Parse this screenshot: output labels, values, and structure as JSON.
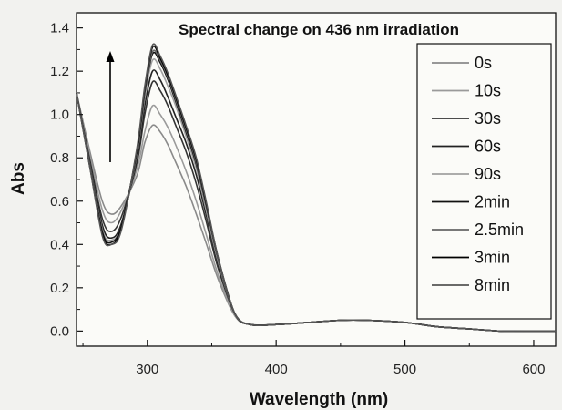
{
  "chart_data": {
    "type": "line",
    "title": "Spectral change on 436 nm irradiation",
    "xlabel": "Wavelength (nm)",
    "ylabel": "Abs",
    "xlim": [
      245,
      617
    ],
    "ylim": [
      -0.07,
      1.47
    ],
    "xticks": [
      300,
      400,
      500,
      600
    ],
    "yticks": [
      0.0,
      0.2,
      0.4,
      0.6,
      0.8,
      1.0,
      1.2,
      1.4
    ],
    "grid": false,
    "legend_position": "right",
    "annotation": "upward arrow near 275 nm indicating increasing absorbance with irradiation time",
    "series": [
      {
        "name": "0s",
        "color": "#8a8a8a",
        "values": [
          1.1,
          0.84,
          0.6,
          0.54,
          0.58,
          0.72,
          0.87,
          0.95,
          0.92,
          0.86,
          0.78,
          0.67,
          0.54,
          0.4,
          0.24,
          0.07,
          0.03,
          0.03,
          0.04,
          0.05,
          0.05,
          0.04,
          0.02,
          0.01,
          0.0,
          0.0,
          0.0
        ]
      },
      {
        "name": "10s",
        "color": "#9a9a9a",
        "values": [
          1.1,
          0.82,
          0.56,
          0.5,
          0.56,
          0.75,
          0.92,
          1.04,
          1.0,
          0.94,
          0.86,
          0.74,
          0.6,
          0.44,
          0.26,
          0.07,
          0.03,
          0.03,
          0.04,
          0.05,
          0.05,
          0.04,
          0.02,
          0.01,
          0.0,
          0.0,
          0.0
        ]
      },
      {
        "name": "30s",
        "color": "#333333",
        "values": [
          1.1,
          0.8,
          0.52,
          0.46,
          0.53,
          0.78,
          1.0,
          1.15,
          1.11,
          1.04,
          0.95,
          0.83,
          0.68,
          0.5,
          0.29,
          0.08,
          0.03,
          0.03,
          0.04,
          0.05,
          0.05,
          0.04,
          0.02,
          0.01,
          0.0,
          0.0,
          0.0
        ]
      },
      {
        "name": "60s",
        "color": "#222222",
        "values": [
          1.1,
          0.79,
          0.49,
          0.43,
          0.5,
          0.8,
          1.04,
          1.2,
          1.16,
          1.08,
          0.99,
          0.87,
          0.72,
          0.53,
          0.31,
          0.08,
          0.03,
          0.03,
          0.04,
          0.05,
          0.05,
          0.04,
          0.02,
          0.01,
          0.0,
          0.0,
          0.0
        ]
      },
      {
        "name": "90s",
        "color": "#a0a0a0",
        "values": [
          1.1,
          0.78,
          0.47,
          0.42,
          0.49,
          0.82,
          1.08,
          1.25,
          1.21,
          1.13,
          1.04,
          0.9,
          0.75,
          0.55,
          0.32,
          0.08,
          0.03,
          0.03,
          0.04,
          0.05,
          0.05,
          0.04,
          0.02,
          0.01,
          0.0,
          0.0,
          0.0
        ]
      },
      {
        "name": "2min",
        "color": "#111111",
        "values": [
          1.1,
          0.78,
          0.46,
          0.41,
          0.49,
          0.83,
          1.1,
          1.28,
          1.24,
          1.16,
          1.06,
          0.92,
          0.77,
          0.57,
          0.33,
          0.08,
          0.03,
          0.03,
          0.04,
          0.05,
          0.05,
          0.04,
          0.02,
          0.01,
          0.0,
          0.0,
          0.0
        ]
      },
      {
        "name": "2.5min",
        "color": "#666666",
        "values": [
          1.1,
          0.78,
          0.45,
          0.4,
          0.48,
          0.84,
          1.11,
          1.29,
          1.25,
          1.17,
          1.07,
          0.93,
          0.78,
          0.57,
          0.33,
          0.08,
          0.03,
          0.03,
          0.04,
          0.05,
          0.05,
          0.04,
          0.02,
          0.01,
          0.0,
          0.0,
          0.0
        ]
      },
      {
        "name": "3min",
        "color": "#000000",
        "values": [
          1.1,
          0.77,
          0.45,
          0.4,
          0.48,
          0.84,
          1.12,
          1.31,
          1.26,
          1.18,
          1.08,
          0.94,
          0.79,
          0.58,
          0.34,
          0.08,
          0.03,
          0.03,
          0.04,
          0.05,
          0.05,
          0.04,
          0.02,
          0.01,
          0.0,
          0.0,
          0.0
        ]
      },
      {
        "name": "8min",
        "color": "#555555",
        "values": [
          1.1,
          0.77,
          0.44,
          0.4,
          0.47,
          0.85,
          1.13,
          1.32,
          1.27,
          1.19,
          1.09,
          0.95,
          0.8,
          0.59,
          0.34,
          0.08,
          0.03,
          0.03,
          0.04,
          0.05,
          0.05,
          0.04,
          0.02,
          0.01,
          0.0,
          0.0,
          0.0
        ]
      }
    ],
    "x": [
      245,
      255,
      265,
      272,
      280,
      292,
      298,
      304,
      310,
      316,
      322,
      330,
      338,
      346,
      355,
      368,
      380,
      400,
      425,
      450,
      470,
      500,
      525,
      550,
      575,
      600,
      617
    ]
  }
}
